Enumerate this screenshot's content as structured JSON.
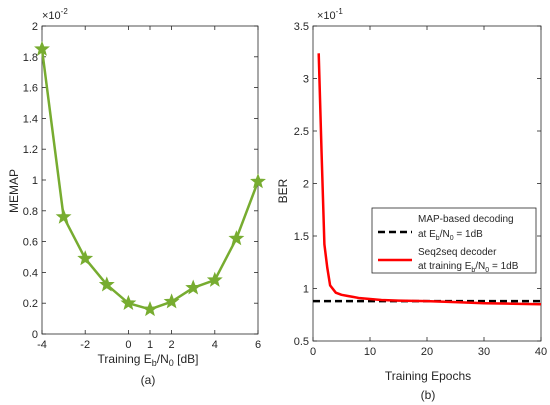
{
  "chart_data": [
    {
      "type": "line",
      "caption": "(a)",
      "xlabel": "Training E_b/N_0 [dB]",
      "ylabel": "MEMAP",
      "y_multiplier": "×10⁻²",
      "xlim": [
        -4,
        6
      ],
      "ylim": [
        0,
        2
      ],
      "xticks": [
        "-4",
        "-2",
        "0",
        "1",
        "2",
        "4",
        "6"
      ],
      "yticks": [
        "0",
        "0.2",
        "0.4",
        "0.6",
        "0.8",
        "1",
        "1.2",
        "1.4",
        "1.6",
        "1.8",
        "2"
      ],
      "grid": false,
      "series": [
        {
          "color": "#77AC30",
          "marker": "star",
          "x": [
            -4,
            -3,
            -2,
            -1,
            0,
            1,
            2,
            3,
            4,
            5,
            6
          ],
          "y": [
            1.85,
            0.76,
            0.49,
            0.32,
            0.2,
            0.16,
            0.21,
            0.3,
            0.35,
            0.62,
            0.99
          ]
        }
      ]
    },
    {
      "type": "line",
      "caption": "(b)",
      "xlabel": "Training Epochs",
      "ylabel": "BER",
      "y_multiplier": "×10⁻¹",
      "xlim": [
        0,
        40
      ],
      "ylim": [
        0.5,
        3.5
      ],
      "xticks": [
        "0",
        "10",
        "20",
        "30",
        "40"
      ],
      "yticks": [
        "0.5",
        "1",
        "1.5",
        "2",
        "2.5",
        "3",
        "3.5"
      ],
      "grid": false,
      "legend_position": "right",
      "series": [
        {
          "name_line1": "MAP-based decoding",
          "name_line2": "at E_b/N_0 = 1dB",
          "color": "#000000",
          "style": "dashed",
          "x": [
            0,
            40
          ],
          "y": [
            0.88,
            0.88
          ]
        },
        {
          "name_line1": "Seq2seq decoder",
          "name_line2": "at training E_b/N_0 = 1dB",
          "color": "#FF0000",
          "style": "solid",
          "x": [
            1,
            1.5,
            2,
            2.5,
            3,
            4,
            5,
            6,
            7,
            8,
            10,
            12,
            15,
            20,
            25,
            30,
            35,
            40
          ],
          "y": [
            3.24,
            2.3,
            1.42,
            1.2,
            1.03,
            0.96,
            0.94,
            0.93,
            0.92,
            0.91,
            0.9,
            0.89,
            0.885,
            0.88,
            0.87,
            0.86,
            0.855,
            0.85
          ]
        }
      ]
    }
  ]
}
